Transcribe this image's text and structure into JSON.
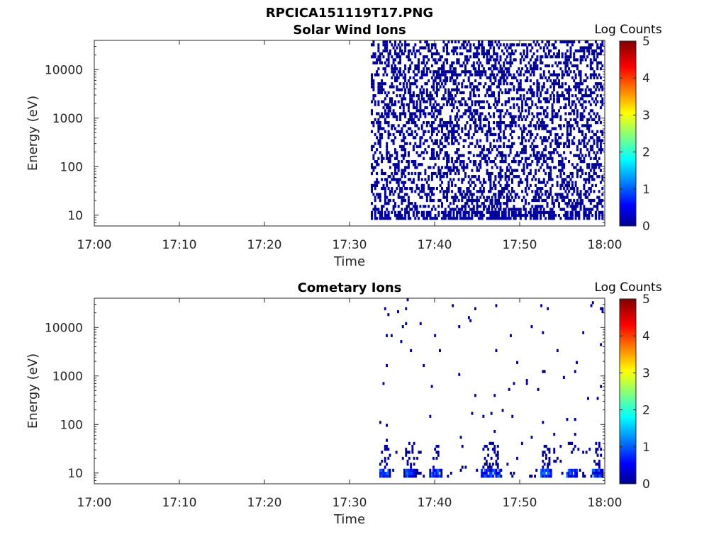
{
  "figure_title": "RPCICA151119T17.PNG",
  "chart_data": [
    {
      "type": "heatmap",
      "title": "Solar Wind Ions",
      "xlabel": "Time",
      "ylabel": "Energy (eV)",
      "x_ticks": [
        "17:00",
        "17:10",
        "17:20",
        "17:30",
        "17:40",
        "17:50",
        "18:00"
      ],
      "y_scale": "log",
      "y_ticks": [
        "10",
        "100",
        "1000",
        "10000"
      ],
      "ylim": [
        6,
        40000
      ],
      "xlim": [
        "17:00",
        "18:00"
      ],
      "data_time_range": [
        "17:32",
        "18:00"
      ],
      "colorbar_label": "Log Counts",
      "colorbar_ticks": [
        "0",
        "1",
        "2",
        "3",
        "4",
        "5"
      ],
      "colorbar_range": [
        0,
        5
      ],
      "typical_log_counts": 0.2,
      "colormap": [
        "#00008f",
        "#0000ff",
        "#00ffff",
        "#ffff00",
        "#ff0000",
        "#800000"
      ]
    },
    {
      "type": "heatmap",
      "title": "Cometary Ions",
      "xlabel": "Time",
      "ylabel": "Energy (eV)",
      "x_ticks": [
        "17:00",
        "17:10",
        "17:20",
        "17:30",
        "17:40",
        "17:50",
        "18:00"
      ],
      "y_scale": "log",
      "y_ticks": [
        "10",
        "100",
        "1000",
        "10000"
      ],
      "ylim": [
        6,
        40000
      ],
      "xlim": [
        "17:00",
        "18:00"
      ],
      "data_time_range": [
        "17:33",
        "18:00"
      ],
      "burst_times": [
        "17:34",
        "17:37",
        "17:40",
        "17:46",
        "17:47",
        "17:53",
        "17:56",
        "17:59"
      ],
      "colorbar_label": "Log Counts",
      "colorbar_ticks": [
        "0",
        "1",
        "2",
        "3",
        "4",
        "5"
      ],
      "colorbar_range": [
        0,
        5
      ],
      "peak_log_counts": 1.9,
      "colormap": [
        "#00008f",
        "#0000ff",
        "#00ffff",
        "#ffff00",
        "#ff0000",
        "#800000"
      ]
    }
  ]
}
